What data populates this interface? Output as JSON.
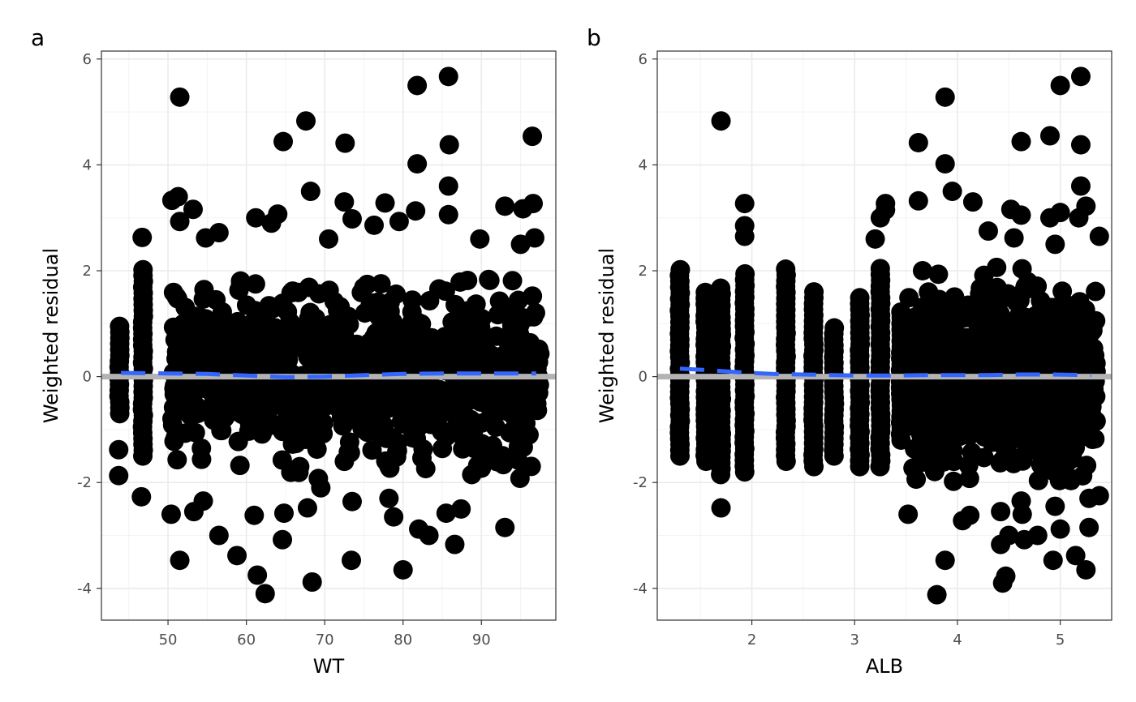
{
  "chart_data": [
    {
      "type": "scatter",
      "panel_tag": "a",
      "xlabel": "WT",
      "ylabel": "Weighted residual",
      "xlim": [
        41.5,
        99.5
      ],
      "ylim": [
        -4.6,
        6.15
      ],
      "x_ticks": [
        50,
        60,
        70,
        80,
        90
      ],
      "y_ticks": [
        -4,
        -2,
        0,
        2,
        4,
        6
      ],
      "x_tick_labels": [
        "50",
        "60",
        "70",
        "80",
        "90"
      ],
      "y_tick_labels": [
        "-4",
        "-2",
        "0",
        "2",
        "4",
        "6"
      ],
      "grid": true,
      "point_color": "#000000",
      "reference_line": {
        "y": 0,
        "color": "#b3b3b3"
      },
      "trend_line": {
        "style": "dashed",
        "color": "#3366ff",
        "x": [
          44,
          50,
          55,
          60,
          65,
          70,
          75,
          80,
          85,
          90,
          97
        ],
        "y": [
          0.07,
          0.06,
          0.05,
          0.02,
          -0.01,
          0.0,
          0.03,
          0.05,
          0.06,
          0.06,
          0.06
        ]
      },
      "band": {
        "x_from": 50.5,
        "x_to": 97.5,
        "y_from": -1.95,
        "y_to": 1.85
      },
      "columns": [
        {
          "x": 43.8,
          "y_from": -0.7,
          "y_to": 1.05
        },
        {
          "x": 46.8,
          "y_from": -1.5,
          "y_to": 2.1
        }
      ],
      "points": [
        [
          43.7,
          -1.38
        ],
        [
          43.7,
          -1.87
        ],
        [
          46.7,
          2.63
        ],
        [
          46.6,
          -2.27
        ],
        [
          51.5,
          5.28
        ],
        [
          51.3,
          3.4
        ],
        [
          50.5,
          3.33
        ],
        [
          51.5,
          2.93
        ],
        [
          50.4,
          -2.6
        ],
        [
          51.5,
          -3.47
        ],
        [
          53.3,
          -2.55
        ],
        [
          54.5,
          -2.35
        ],
        [
          56.5,
          -3.0
        ],
        [
          58.8,
          -3.38
        ],
        [
          61.0,
          -2.62
        ],
        [
          61.4,
          -3.75
        ],
        [
          62.4,
          -4.1
        ],
        [
          64.8,
          -2.58
        ],
        [
          64.6,
          -3.08
        ],
        [
          67.8,
          -2.48
        ],
        [
          68.4,
          -3.88
        ],
        [
          69.5,
          -2.1
        ],
        [
          73.4,
          -3.47
        ],
        [
          73.5,
          -2.36
        ],
        [
          78.2,
          -2.3
        ],
        [
          78.8,
          -2.65
        ],
        [
          80.0,
          -3.65
        ],
        [
          82.0,
          -2.88
        ],
        [
          83.3,
          -3.0
        ],
        [
          85.5,
          -2.58
        ],
        [
          86.6,
          -3.17
        ],
        [
          87.4,
          -2.5
        ],
        [
          93.0,
          -2.85
        ],
        [
          53.2,
          3.16
        ],
        [
          54.8,
          2.62
        ],
        [
          56.5,
          2.72
        ],
        [
          61.2,
          3.0
        ],
        [
          64.0,
          3.07
        ],
        [
          63.2,
          2.9
        ],
        [
          67.6,
          4.83
        ],
        [
          64.7,
          4.44
        ],
        [
          68.2,
          3.5
        ],
        [
          70.5,
          2.6
        ],
        [
          72.6,
          4.41
        ],
        [
          72.5,
          3.3
        ],
        [
          73.5,
          2.98
        ],
        [
          76.3,
          2.86
        ],
        [
          77.7,
          3.28
        ],
        [
          79.5,
          2.93
        ],
        [
          81.8,
          5.5
        ],
        [
          81.8,
          4.02
        ],
        [
          81.6,
          3.13
        ],
        [
          85.8,
          5.67
        ],
        [
          85.9,
          4.38
        ],
        [
          85.8,
          3.6
        ],
        [
          85.8,
          3.06
        ],
        [
          89.8,
          2.6
        ],
        [
          93.0,
          3.22
        ],
        [
          95.3,
          3.17
        ],
        [
          96.5,
          4.54
        ],
        [
          96.6,
          3.27
        ],
        [
          95.0,
          2.5
        ],
        [
          96.8,
          2.62
        ]
      ]
    },
    {
      "type": "scatter",
      "panel_tag": "b",
      "xlabel": "ALB",
      "ylabel": "Weighted residual",
      "xlim": [
        1.08,
        5.5
      ],
      "ylim": [
        -4.6,
        6.15
      ],
      "x_ticks": [
        2,
        3,
        4,
        5
      ],
      "y_ticks": [
        -4,
        -2,
        0,
        2,
        4,
        6
      ],
      "x_tick_labels": [
        "2",
        "3",
        "4",
        "5"
      ],
      "y_tick_labels": [
        "-4",
        "-2",
        "0",
        "2",
        "4",
        "6"
      ],
      "grid": true,
      "point_color": "#000000",
      "reference_line": {
        "y": 0,
        "color": "#b3b3b3"
      },
      "trend_line": {
        "style": "dashed",
        "color": "#3366ff",
        "x": [
          1.3,
          1.6,
          1.9,
          2.2,
          2.5,
          2.8,
          3.1,
          3.4,
          3.7,
          4.0,
          4.3,
          4.6,
          4.9,
          5.3
        ],
        "y": [
          0.15,
          0.12,
          0.08,
          0.05,
          0.04,
          0.03,
          0.02,
          0.02,
          0.03,
          0.03,
          0.03,
          0.04,
          0.04,
          0.03
        ]
      },
      "band": {
        "x_from": 3.52,
        "x_to": 5.35,
        "y_from": -2.0,
        "y_to": 2.2
      },
      "columns": [
        {
          "x": 1.3,
          "y_from": -1.5,
          "y_to": 2.1
        },
        {
          "x": 1.55,
          "y_from": -1.6,
          "y_to": 1.6
        },
        {
          "x": 1.7,
          "y_from": -1.85,
          "y_to": 1.75
        },
        {
          "x": 1.93,
          "y_from": -1.8,
          "y_to": 1.95
        },
        {
          "x": 2.33,
          "y_from": -1.6,
          "y_to": 2.05
        },
        {
          "x": 2.6,
          "y_from": -1.7,
          "y_to": 1.7
        },
        {
          "x": 2.8,
          "y_from": -1.5,
          "y_to": 1.0
        },
        {
          "x": 3.05,
          "y_from": -1.7,
          "y_to": 1.6
        },
        {
          "x": 3.25,
          "y_from": -1.7,
          "y_to": 2.05
        },
        {
          "x": 3.45,
          "y_from": -1.2,
          "y_to": 1.3
        }
      ],
      "points": [
        [
          1.7,
          4.83
        ],
        [
          1.7,
          -2.48
        ],
        [
          1.93,
          3.27
        ],
        [
          1.93,
          2.85
        ],
        [
          1.93,
          2.65
        ],
        [
          3.2,
          2.6
        ],
        [
          3.25,
          3.0
        ],
        [
          3.3,
          3.15
        ],
        [
          3.3,
          3.27
        ],
        [
          3.52,
          -2.6
        ],
        [
          3.62,
          4.42
        ],
        [
          3.62,
          3.32
        ],
        [
          3.8,
          -4.12
        ],
        [
          3.88,
          5.28
        ],
        [
          3.88,
          4.02
        ],
        [
          3.88,
          -3.47
        ],
        [
          3.95,
          3.5
        ],
        [
          4.05,
          -2.72
        ],
        [
          4.12,
          -2.62
        ],
        [
          4.15,
          3.3
        ],
        [
          4.3,
          2.75
        ],
        [
          4.42,
          -2.55
        ],
        [
          4.42,
          -3.17
        ],
        [
          4.44,
          -3.9
        ],
        [
          4.47,
          -3.77
        ],
        [
          4.5,
          -3.0
        ],
        [
          4.52,
          3.16
        ],
        [
          4.55,
          2.62
        ],
        [
          4.62,
          4.44
        ],
        [
          4.62,
          3.05
        ],
        [
          4.62,
          -2.35
        ],
        [
          4.63,
          -2.6
        ],
        [
          4.65,
          -3.08
        ],
        [
          4.78,
          -3.0
        ],
        [
          4.9,
          4.55
        ],
        [
          4.9,
          3.0
        ],
        [
          4.95,
          2.5
        ],
        [
          4.93,
          -3.47
        ],
        [
          4.95,
          -2.45
        ],
        [
          5.0,
          5.5
        ],
        [
          5.0,
          3.1
        ],
        [
          5.0,
          -2.88
        ],
        [
          5.15,
          -3.38
        ],
        [
          5.18,
          3.0
        ],
        [
          5.2,
          5.67
        ],
        [
          5.2,
          4.38
        ],
        [
          5.2,
          3.6
        ],
        [
          5.25,
          3.22
        ],
        [
          5.25,
          -3.65
        ],
        [
          5.28,
          -2.85
        ],
        [
          5.28,
          -2.3
        ],
        [
          5.38,
          2.65
        ],
        [
          5.38,
          -2.25
        ]
      ]
    }
  ]
}
